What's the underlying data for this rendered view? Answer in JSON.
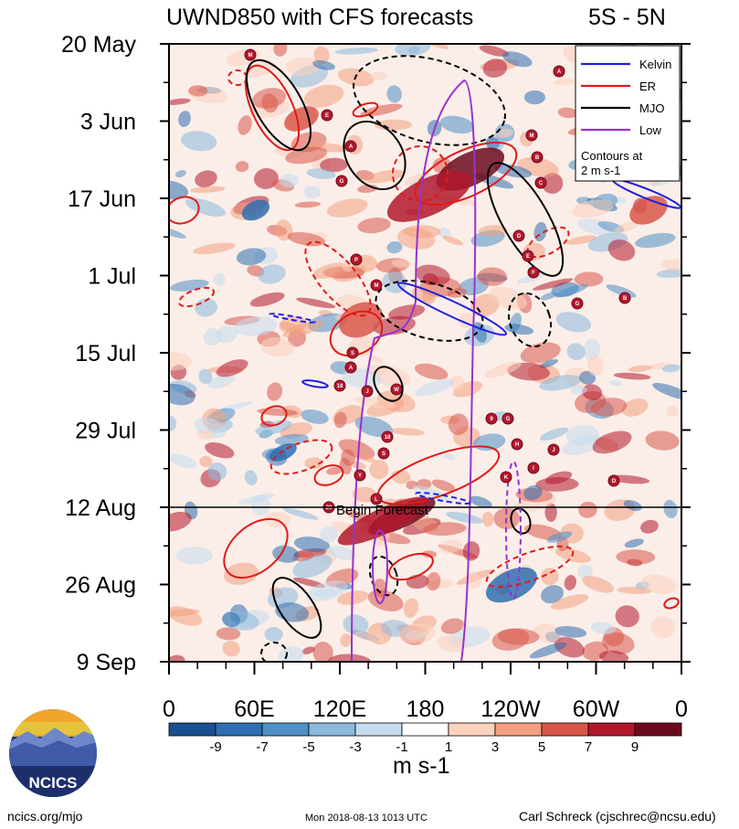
{
  "title": "UWND850 with CFS forecasts",
  "region": "5S - 5N",
  "chart_data": {
    "type": "heatmap",
    "title": "UWND850 with CFS forecasts",
    "region": "5S - 5N",
    "x_ticks": [
      "0",
      "60E",
      "120E",
      "180",
      "120W",
      "60W",
      "0"
    ],
    "y_ticks": [
      "20 May",
      "3 Jun",
      "17 Jun",
      "1 Jul",
      "15 Jul",
      "29 Jul",
      "12 Aug",
      "26 Aug",
      "9 Sep"
    ],
    "colorbar": {
      "levels": [
        "-9",
        "-7",
        "-5",
        "-3",
        "-1",
        "1",
        "3",
        "5",
        "7",
        "9"
      ],
      "units": "m s-1",
      "colors": [
        "#1a4f8f",
        "#2f6fb0",
        "#4f90c6",
        "#8ab9dc",
        "#c4dcef",
        "#ffffff",
        "#fbd2bd",
        "#f2a080",
        "#d9574a",
        "#b2182b",
        "#6b0a1e"
      ]
    },
    "legend": {
      "position": "top-right",
      "entries": [
        {
          "name": "Kelvin",
          "color": "#1f1fe0"
        },
        {
          "name": "ER",
          "color": "#e01a1a"
        },
        {
          "name": "MJO",
          "color": "#000000"
        },
        {
          "name": "Low",
          "color": "#9932cc"
        }
      ],
      "note_line1": "Contours at",
      "note_line2": "2 m s-1"
    },
    "forecast_marker": {
      "label": "Begin Forecast",
      "date": "12 Aug"
    },
    "storms": [
      "M",
      "A",
      "E",
      "M",
      "A",
      "B",
      "G",
      "C",
      "D",
      "E",
      "F",
      "P",
      "M",
      "G",
      "B",
      "S",
      "A",
      "18",
      "J",
      "W",
      "9",
      "G",
      "18",
      "S",
      "H",
      "J",
      "K",
      "I",
      "D",
      "Y",
      "L",
      "20"
    ]
  },
  "footer": {
    "left": "ncics.org/mjo",
    "center": "Mon 2018-08-13 1013 UTC",
    "right": "Carl Schreck (cjschrec@ncsu.edu)"
  },
  "logo": {
    "text": "NCICS"
  }
}
